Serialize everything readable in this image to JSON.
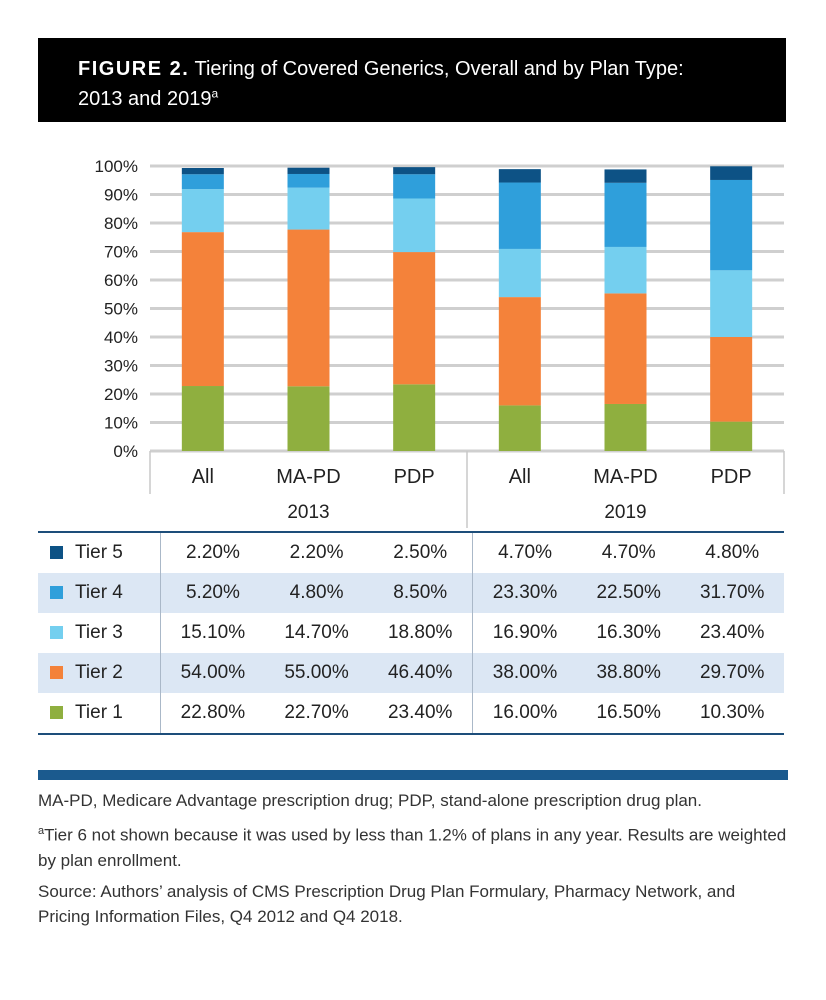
{
  "figure": {
    "label": "FIGURE 2.",
    "title": "Tiering of Covered Generics, Overall and by Plan Type:",
    "title_line2": "2013 and 2019",
    "title_sup": "a"
  },
  "chart_data": {
    "type": "bar",
    "stacked": true,
    "normalized": true,
    "categories": [
      "All",
      "MA-PD",
      "PDP",
      "All",
      "MA-PD",
      "PDP"
    ],
    "groups": [
      {
        "label": "2013",
        "categories": [
          "All",
          "MA-PD",
          "PDP"
        ]
      },
      {
        "label": "2019",
        "categories": [
          "All",
          "MA-PD",
          "PDP"
        ]
      }
    ],
    "series": [
      {
        "name": "Tier 1",
        "color": "#8faf3f",
        "values": [
          22.8,
          22.7,
          23.4,
          16.0,
          16.5,
          10.3
        ],
        "labels": [
          "22.80%",
          "22.70%",
          "23.40%",
          "16.00%",
          "16.50%",
          "10.30%"
        ]
      },
      {
        "name": "Tier 2",
        "color": "#f4823a",
        "values": [
          54.0,
          55.0,
          46.4,
          38.0,
          38.8,
          29.7
        ],
        "labels": [
          "54.00%",
          "55.00%",
          "46.40%",
          "38.00%",
          "38.80%",
          "29.70%"
        ]
      },
      {
        "name": "Tier 3",
        "color": "#74cfef",
        "values": [
          15.1,
          14.7,
          18.8,
          16.9,
          16.3,
          23.4
        ],
        "labels": [
          "15.10%",
          "14.70%",
          "18.80%",
          "16.90%",
          "16.30%",
          "23.40%"
        ]
      },
      {
        "name": "Tier 4",
        "color": "#2f9fdb",
        "values": [
          5.2,
          4.8,
          8.5,
          23.3,
          22.5,
          31.7
        ],
        "labels": [
          "5.20%",
          "4.80%",
          "8.50%",
          "23.30%",
          "22.50%",
          "31.70%"
        ]
      },
      {
        "name": "Tier 5",
        "color": "#0d5285",
        "values": [
          2.2,
          2.2,
          2.5,
          4.7,
          4.7,
          4.8
        ],
        "labels": [
          "2.20%",
          "2.20%",
          "2.50%",
          "4.70%",
          "4.70%",
          "4.80%"
        ]
      }
    ],
    "ylim": [
      0,
      100
    ],
    "yticks": [
      "0%",
      "10%",
      "20%",
      "30%",
      "40%",
      "50%",
      "60%",
      "70%",
      "80%",
      "90%",
      "100%"
    ],
    "grid": true,
    "xlabel": "",
    "ylabel": ""
  },
  "notes": {
    "abbrev": "MA-PD, Medicare Advantage prescription drug; PDP, stand-alone prescription drug plan.",
    "footnote_mark": "a",
    "footnote": "Tier 6 not shown because it was used by less than 1.2% of plans in any year. Results are weighted by plan enrollment.",
    "source": "Source: Authors’ analysis of CMS Prescription Drug Plan Formulary, Pharmacy Network, and Pricing Information Files, Q4 2012 and Q4 2018."
  }
}
